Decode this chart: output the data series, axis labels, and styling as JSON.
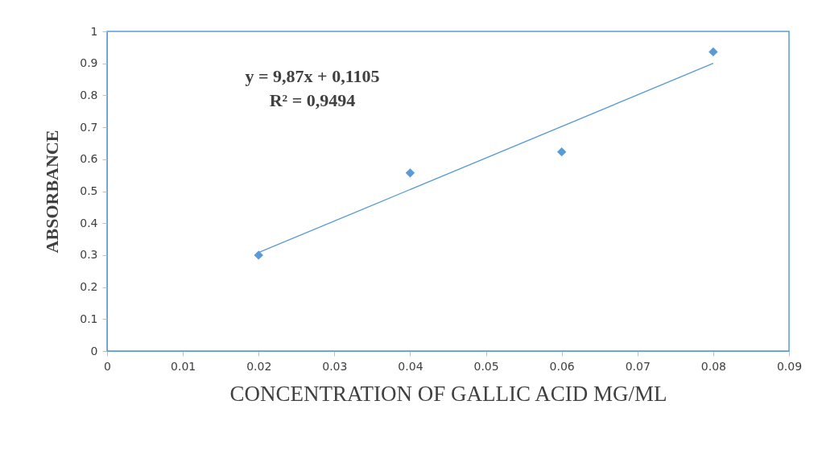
{
  "chart_data": {
    "type": "scatter",
    "xlabel": "CONCENTRATION OF GALLIC ACID MG/ML",
    "ylabel": "ABSORBANCE",
    "x": [
      0.02,
      0.04,
      0.06,
      0.08
    ],
    "series": [
      {
        "color": "#5b9bd5",
        "marker": "diamond",
        "values": [
          0.3,
          0.557,
          0.623,
          0.936
        ]
      },
      {
        "type": "line",
        "color": "#5b9bd5",
        "x": [
          0.02,
          0.08
        ],
        "values": [
          0.308,
          0.9
        ]
      }
    ],
    "annotations": [
      "y = 9,87x + 0,1105",
      "R² = 0,9494"
    ],
    "xlim": [
      0,
      0.09
    ],
    "xticks": [
      0,
      0.01,
      0.02,
      0.03,
      0.04,
      0.05,
      0.06,
      0.07,
      0.08,
      0.09
    ],
    "ylim": [
      0,
      1
    ],
    "yticks": [
      0,
      0.1,
      0.2,
      0.3,
      0.4,
      0.5,
      0.6,
      0.7,
      0.8,
      0.9,
      1
    ],
    "grid": false
  }
}
